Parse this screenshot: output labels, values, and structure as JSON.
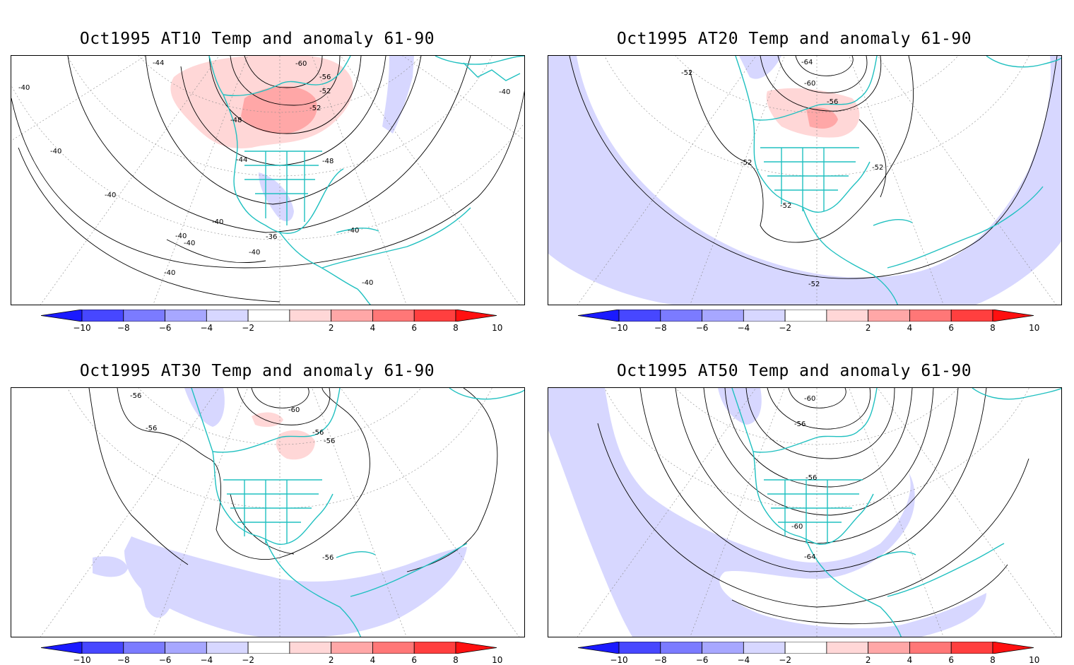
{
  "panels": [
    {
      "id": "at10",
      "title": "Oct1995 AT10 Temp and anomaly 61-90",
      "contour_labels": [
        "-44",
        "-40",
        "-60",
        "-56",
        "-52",
        "-52",
        "-48",
        "-44",
        "-48",
        "-40",
        "-40",
        "-40",
        "-40",
        "-40",
        "-40",
        "-40",
        "-36",
        "-40",
        "-40",
        "-40"
      ],
      "anomaly_shading": "positive"
    },
    {
      "id": "at20",
      "title": "Oct1995 AT20 Temp and anomaly 61-90",
      "contour_labels": [
        "-52",
        "-64",
        "-60",
        "-56",
        "-52",
        "-52",
        "-52",
        "-52"
      ],
      "anomaly_shading": "mixed"
    },
    {
      "id": "at30",
      "title": "Oct1995 AT30 Temp and anomaly 61-90",
      "contour_labels": [
        "-56",
        "-56",
        "-60",
        "-56",
        "-56",
        "-56"
      ],
      "anomaly_shading": "negative-band"
    },
    {
      "id": "at50",
      "title": "Oct1995 AT50 Temp and anomaly 61-90",
      "contour_labels": [
        "-60",
        "-56",
        "-56",
        "-60",
        "-64"
      ],
      "anomaly_shading": "negative-wide"
    }
  ],
  "colorbar": {
    "labels": [
      "-10",
      "-8",
      "-6",
      "-4",
      "-2",
      "2",
      "4",
      "6",
      "8",
      "10"
    ],
    "colors": [
      "#1a1aff",
      "#4747ff",
      "#7b7bff",
      "#a7a7ff",
      "#d7d7ff",
      "#ffffff",
      "#ffd7d7",
      "#ffa7a7",
      "#ff7777",
      "#ff3f3f",
      "#ff1010"
    ]
  },
  "colors": {
    "coast": "#20c0c0",
    "contour": "#000000",
    "frame": "#000000"
  }
}
